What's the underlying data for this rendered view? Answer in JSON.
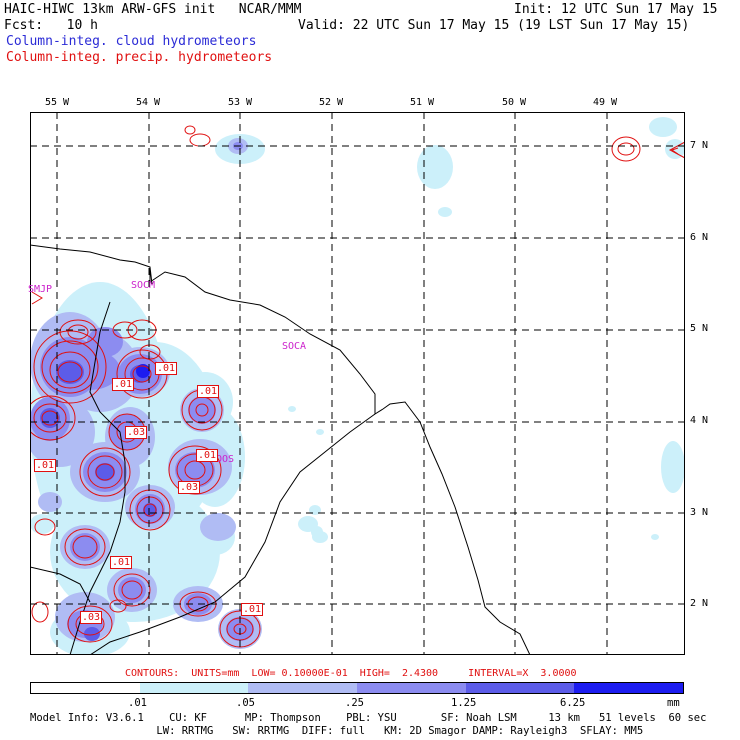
{
  "header": {
    "line1_left": "HAIC-HIWC 13km ARW-GFS init   NCAR/MMM",
    "line1_right": "Init: 12 UTC Sun 17 May 15",
    "line2_left": "Fcst:   10 h",
    "line2_right": "Valid: 22 UTC Sun 17 May 15 (19 LST Sun 17 May 15)",
    "field1": "Column-integ. cloud hydrometeors",
    "field2": "Column-integ. precip. hydrometeors"
  },
  "axes": {
    "lon_labels": [
      "55 W",
      "54 W",
      "53 W",
      "52 W",
      "51 W",
      "50 W",
      "49 W"
    ],
    "lat_labels": [
      "7 N",
      "6 N",
      "5 N",
      "4 N",
      "3 N",
      "2 N"
    ]
  },
  "stations": [
    "SMJP",
    "SOCM",
    "SOCA",
    "SOOS"
  ],
  "contour_labels": [
    ".01",
    ".01",
    ".01",
    ".03",
    ".01",
    ".03",
    ".01",
    ".01",
    ".03",
    ".01"
  ],
  "contour_info": "CONTOURS:  UNITS=mm  LOW= 0.10000E-01  HIGH=  2.4300     INTERVAL=X  3.0000",
  "colorbar": {
    "ticks": [
      ".01",
      ".05",
      ".25",
      "1.25",
      "6.25"
    ],
    "unit": "mm",
    "colors": [
      "#ffffff",
      "#ccf0fa",
      "#b0bcf4",
      "#8c8cf0",
      "#5c5ce8",
      "#1c1cf0"
    ]
  },
  "model_info": {
    "line1": "Model Info: V3.6.1    CU: KF      MP: Thompson    PBL: YSU       SF: Noah LSM     13 km   51 levels  60 sec",
    "line2": "                    LW: RRTMG   SW: RRTMG  DIFF: full   KM: 2D Smagor DAMP: Rayleigh3  SFLAY: MM5"
  }
}
